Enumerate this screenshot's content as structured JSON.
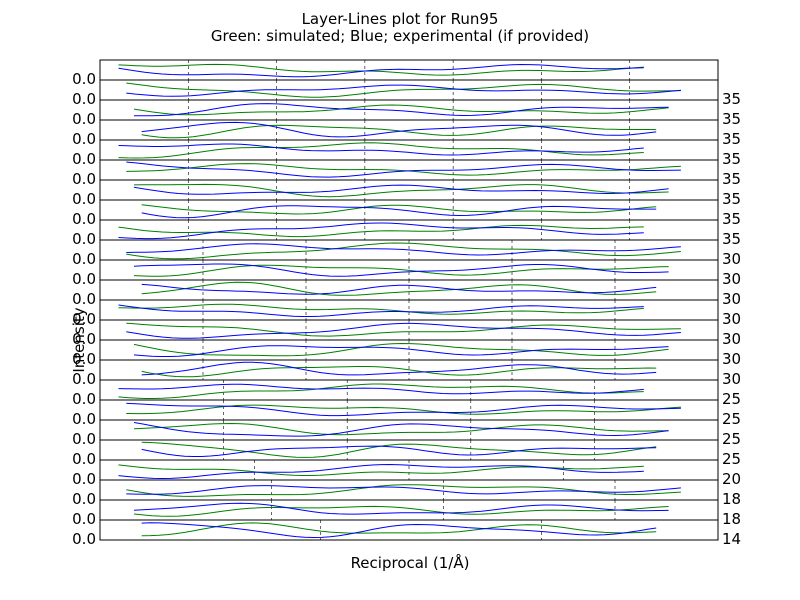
{
  "chart_data": {
    "type": "line",
    "title": "Layer-Lines plot for Run95",
    "subtitle": "Green: simulated; Blue; experimental (if provided)",
    "xlabel": "Reciprocal (1/Å)",
    "ylabel": "Intensity",
    "grid": true,
    "colors": {
      "simulated": "#008000",
      "experimental": "#0000ff"
    },
    "left_tick_label": "0.0",
    "panels": [
      {
        "right_tick": "",
        "xmax": 0.35
      },
      {
        "right_tick": "35",
        "xmax": 0.35
      },
      {
        "right_tick": "35",
        "xmax": 0.35
      },
      {
        "right_tick": "35",
        "xmax": 0.35
      },
      {
        "right_tick": "35",
        "xmax": 0.35
      },
      {
        "right_tick": "35",
        "xmax": 0.35
      },
      {
        "right_tick": "35",
        "xmax": 0.35
      },
      {
        "right_tick": "35",
        "xmax": 0.35
      },
      {
        "right_tick": "35",
        "xmax": 0.35
      },
      {
        "right_tick": "30",
        "xmax": 0.3
      },
      {
        "right_tick": "30",
        "xmax": 0.3
      },
      {
        "right_tick": "30",
        "xmax": 0.3
      },
      {
        "right_tick": "30",
        "xmax": 0.3
      },
      {
        "right_tick": "30",
        "xmax": 0.3
      },
      {
        "right_tick": "30",
        "xmax": 0.3
      },
      {
        "right_tick": "30",
        "xmax": 0.3
      },
      {
        "right_tick": "25",
        "xmax": 0.25
      },
      {
        "right_tick": "25",
        "xmax": 0.25
      },
      {
        "right_tick": "25",
        "xmax": 0.25
      },
      {
        "right_tick": "25",
        "xmax": 0.25
      },
      {
        "right_tick": "20",
        "xmax": 0.2
      },
      {
        "right_tick": "18",
        "xmax": 0.18
      },
      {
        "right_tick": "18",
        "xmax": 0.18
      },
      {
        "right_tick": "14",
        "xmax": 0.14
      }
    ]
  }
}
